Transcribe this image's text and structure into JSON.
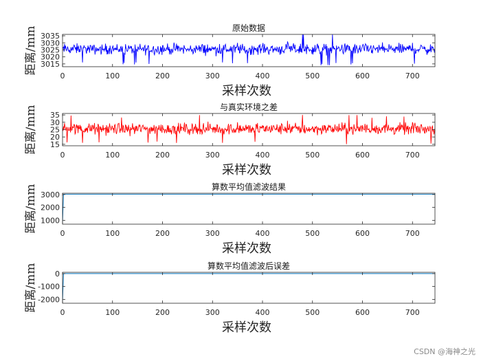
{
  "chart_data": [
    {
      "type": "line",
      "title": "原始数据",
      "xlabel": "采样次数",
      "ylabel": "距离/mm",
      "xlim": [
        0,
        745
      ],
      "ylim": [
        3013,
        3036
      ],
      "xticks": [
        0,
        100,
        200,
        300,
        400,
        500,
        600,
        700
      ],
      "yticks": [
        3015,
        3020,
        3025,
        3030,
        3035
      ],
      "grid": false,
      "series": [
        {
          "color": "#0000ff",
          "signal": "noisy",
          "n": 745,
          "mean": 3025.5,
          "spread": 3.5,
          "min": 3014,
          "max": 3036,
          "sample_points": [
            [
              0,
              3026
            ],
            [
              20,
              3027
            ],
            [
              40,
              3016
            ],
            [
              60,
              3028
            ],
            [
              80,
              3025
            ],
            [
              100,
              3027
            ],
            [
              150,
              3024
            ],
            [
              200,
              3028
            ],
            [
              250,
              3025
            ],
            [
              300,
              3026
            ],
            [
              320,
              3016
            ],
            [
              350,
              3030
            ],
            [
              400,
              3028
            ],
            [
              450,
              3031
            ],
            [
              480,
              3036
            ],
            [
              500,
              3027
            ],
            [
              550,
              3026
            ],
            [
              600,
              3028
            ],
            [
              650,
              3024
            ],
            [
              700,
              3030
            ],
            [
              745,
              3026
            ]
          ]
        }
      ]
    },
    {
      "type": "line",
      "title": "与真实环境之差",
      "xlabel": "采样次数",
      "ylabel": "距离/mm",
      "xlim": [
        0,
        745
      ],
      "ylim": [
        14,
        36
      ],
      "xticks": [
        0,
        100,
        200,
        300,
        400,
        500,
        600,
        700
      ],
      "yticks": [
        15,
        20,
        25,
        30,
        35
      ],
      "grid": false,
      "series": [
        {
          "color": "#ff0000",
          "signal": "noisy",
          "n": 745,
          "mean": 25.5,
          "spread": 3.5,
          "min": 15,
          "max": 35,
          "sample_points": [
            [
              0,
              26
            ],
            [
              20,
              27
            ],
            [
              40,
              16
            ],
            [
              60,
              28
            ],
            [
              80,
              25
            ],
            [
              100,
              27
            ],
            [
              150,
              24
            ],
            [
              200,
              28
            ],
            [
              250,
              25
            ],
            [
              300,
              26
            ],
            [
              320,
              16
            ],
            [
              350,
              30
            ],
            [
              400,
              28
            ],
            [
              450,
              31
            ],
            [
              480,
              35
            ],
            [
              500,
              27
            ],
            [
              550,
              26
            ],
            [
              600,
              28
            ],
            [
              650,
              24
            ],
            [
              700,
              30
            ],
            [
              745,
              26
            ]
          ]
        }
      ]
    },
    {
      "type": "line",
      "title": "算数平均值滤波结果",
      "xlabel": "采样次数",
      "ylabel": "距离/mm",
      "xlim": [
        0,
        745
      ],
      "ylim": [
        700,
        3100
      ],
      "xticks": [
        0,
        100,
        200,
        300,
        400,
        500,
        600,
        700
      ],
      "yticks": [
        1000,
        2000,
        3000
      ],
      "grid": false,
      "series": [
        {
          "color": "#0072bd",
          "signal": "step",
          "start_value": 800,
          "step_at": 2,
          "value": 3025
        }
      ]
    },
    {
      "type": "line",
      "title": "算数平均值滤波后误差",
      "xlabel": "采样次数",
      "ylabel": "距离/mm",
      "xlim": [
        0,
        745
      ],
      "ylim": [
        -2300,
        100
      ],
      "xticks": [
        0,
        100,
        200,
        300,
        400,
        500,
        600,
        700
      ],
      "yticks": [
        -2000,
        -1000,
        0
      ],
      "grid": false,
      "series": [
        {
          "color": "#0072bd",
          "signal": "step",
          "start_value": -2200,
          "step_at": 2,
          "value": 0
        }
      ]
    }
  ],
  "watermark": "CSDN @海神之光"
}
